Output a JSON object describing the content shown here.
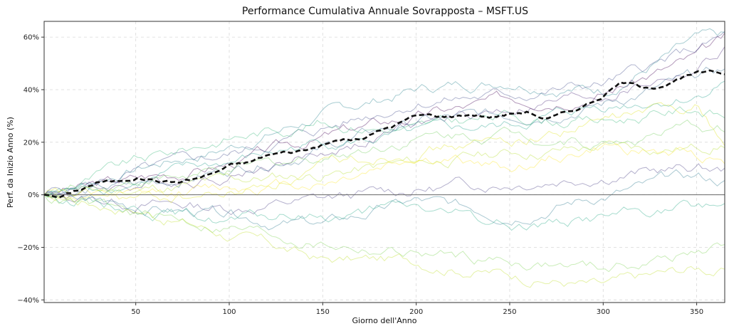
{
  "chart_data": {
    "type": "line",
    "title": "Performance Cumulativa Annuale Sovrapposta – MSFT.US",
    "xlabel": "Giorno dell'Anno",
    "ylabel": "Perf. da Inizio Anno (%)",
    "xlim": [
      1,
      365
    ],
    "ylim": [
      -41,
      66
    ],
    "xticks": [
      50,
      100,
      150,
      200,
      250,
      300,
      350
    ],
    "yticks": [
      -40,
      -20,
      0,
      20,
      40,
      60
    ],
    "xtick_labels": [
      "50",
      "100",
      "150",
      "200",
      "250",
      "300",
      "350"
    ],
    "ytick_labels": [
      "−40%",
      "−20%",
      "0%",
      "20%",
      "40%",
      "60%"
    ],
    "grid": true,
    "zero_line": true,
    "mean_line_color": "#111111",
    "series_colors": [
      "#440154",
      "#482878",
      "#3e4989",
      "#31688e",
      "#26828e",
      "#1f9e89",
      "#35b779",
      "#6ece58",
      "#b5de2b",
      "#fde725",
      "#443983",
      "#2a788e",
      "#22a884",
      "#7ad151",
      "#bddf26",
      "#dfe318"
    ],
    "mean_series": {
      "style": "dashed",
      "x": [
        1,
        10,
        20,
        30,
        40,
        50,
        60,
        70,
        80,
        90,
        100,
        110,
        120,
        130,
        140,
        150,
        160,
        170,
        180,
        190,
        200,
        210,
        220,
        230,
        240,
        250,
        260,
        270,
        280,
        290,
        300,
        310,
        320,
        330,
        340,
        350,
        360,
        365
      ],
      "y": [
        0,
        -1,
        2,
        5,
        5,
        7,
        6,
        5,
        6,
        8,
        11,
        12,
        15,
        16,
        17,
        19,
        21,
        21,
        24,
        27,
        30,
        30,
        30,
        31,
        30,
        31,
        32,
        29,
        31,
        34,
        38,
        43,
        41,
        42,
        44,
        46,
        46,
        46
      ]
    },
    "series": [
      {
        "x": [
          1,
          50,
          100,
          150,
          200,
          250,
          300,
          350,
          365
        ],
        "y": [
          0,
          6,
          12,
          22,
          30,
          36,
          40,
          52,
          58
        ]
      },
      {
        "x": [
          1,
          50,
          100,
          150,
          200,
          250,
          300,
          350,
          365
        ],
        "y": [
          0,
          4,
          8,
          16,
          26,
          33,
          38,
          48,
          55
        ]
      },
      {
        "x": [
          1,
          50,
          100,
          150,
          200,
          250,
          300,
          350,
          365
        ],
        "y": [
          0,
          8,
          15,
          25,
          36,
          38,
          42,
          55,
          60
        ]
      },
      {
        "x": [
          1,
          50,
          100,
          150,
          200,
          250,
          300,
          350,
          365
        ],
        "y": [
          0,
          3,
          10,
          18,
          28,
          30,
          35,
          44,
          47
        ]
      },
      {
        "x": [
          1,
          50,
          100,
          150,
          200,
          250,
          300,
          350,
          365
        ],
        "y": [
          0,
          10,
          18,
          30,
          40,
          44,
          40,
          58,
          59
        ]
      },
      {
        "x": [
          1,
          50,
          100,
          150,
          200,
          250,
          300,
          350,
          365
        ],
        "y": [
          0,
          5,
          12,
          20,
          22,
          26,
          34,
          38,
          44
        ]
      },
      {
        "x": [
          1,
          50,
          100,
          150,
          200,
          250,
          300,
          350,
          365
        ],
        "y": [
          0,
          12,
          22,
          28,
          25,
          30,
          28,
          33,
          30
        ]
      },
      {
        "x": [
          1,
          50,
          100,
          150,
          200,
          250,
          300,
          350,
          365
        ],
        "y": [
          0,
          6,
          8,
          15,
          22,
          24,
          20,
          25,
          25
        ]
      },
      {
        "x": [
          1,
          50,
          100,
          150,
          200,
          250,
          300,
          350,
          365
        ],
        "y": [
          0,
          2,
          5,
          8,
          12,
          16,
          18,
          18,
          20
        ]
      },
      {
        "x": [
          1,
          50,
          100,
          150,
          200,
          250,
          300,
          350,
          365
        ],
        "y": [
          0,
          -2,
          3,
          5,
          15,
          10,
          18,
          15,
          14
        ]
      },
      {
        "x": [
          1,
          50,
          100,
          150,
          200,
          250,
          300,
          350,
          365
        ],
        "y": [
          0,
          -3,
          -5,
          -2,
          2,
          5,
          8,
          10,
          9
        ]
      },
      {
        "x": [
          1,
          50,
          100,
          150,
          200,
          250,
          300,
          350,
          365
        ],
        "y": [
          0,
          -5,
          -8,
          -12,
          -3,
          -7,
          0,
          6,
          5
        ]
      },
      {
        "x": [
          1,
          50,
          100,
          150,
          200,
          250,
          300,
          350,
          365
        ],
        "y": [
          0,
          -4,
          -10,
          -8,
          -5,
          -12,
          -8,
          -5,
          -4
        ]
      },
      {
        "x": [
          1,
          50,
          100,
          150,
          200,
          250,
          300,
          350,
          365
        ],
        "y": [
          0,
          -8,
          -12,
          -18,
          -22,
          -25,
          -28,
          -22,
          -20
        ]
      },
      {
        "x": [
          1,
          50,
          100,
          150,
          200,
          250,
          300,
          350,
          365
        ],
        "y": [
          0,
          -5,
          -15,
          -25,
          -25,
          -30,
          -35,
          -28,
          -29
        ]
      },
      {
        "x": [
          1,
          50,
          100,
          150,
          200,
          250,
          300,
          350,
          365
        ],
        "y": [
          0,
          -2,
          0,
          10,
          18,
          20,
          28,
          35,
          20
        ]
      }
    ]
  }
}
